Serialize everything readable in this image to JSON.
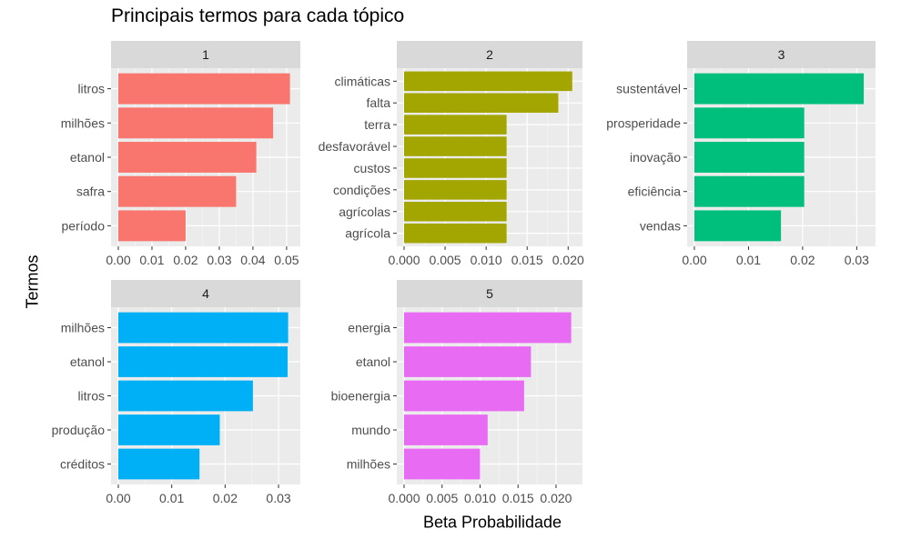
{
  "title": "Principais termos para cada tópico",
  "ylabel": "Termos",
  "xlabel": "Beta Probabilidade",
  "chart_data": [
    {
      "type": "bar",
      "orientation": "horizontal",
      "facet": "1",
      "color": "#F8766D",
      "categories": [
        "litros",
        "milhões",
        "etanol",
        "safra",
        "período"
      ],
      "values": [
        0.051,
        0.046,
        0.041,
        0.035,
        0.02
      ],
      "xlim": [
        0,
        0.053
      ],
      "ticks": [
        0.0,
        0.01,
        0.02,
        0.03,
        0.04,
        0.05
      ],
      "tick_labels": [
        "0.00",
        "0.01",
        "0.02",
        "0.03",
        "0.04",
        "0.05"
      ],
      "grid": true
    },
    {
      "type": "bar",
      "orientation": "horizontal",
      "facet": "2",
      "color": "#A3A500",
      "categories": [
        "climáticas",
        "falta",
        "terra",
        "desfavorável",
        "custos",
        "condições",
        "agrícolas",
        "agrícola"
      ],
      "values": [
        0.0205,
        0.0188,
        0.0125,
        0.0125,
        0.0125,
        0.0125,
        0.0125,
        0.0125
      ],
      "xlim": [
        0,
        0.0213
      ],
      "ticks": [
        0.0,
        0.005,
        0.01,
        0.015,
        0.02
      ],
      "tick_labels": [
        "0.000",
        "0.005",
        "0.010",
        "0.015",
        "0.020"
      ],
      "grid": true
    },
    {
      "type": "bar",
      "orientation": "horizontal",
      "facet": "3",
      "color": "#00BF7D",
      "categories": [
        "sustentável",
        "prosperidade",
        "inovação",
        "eficiência",
        "vendas"
      ],
      "values": [
        0.0313,
        0.0203,
        0.0203,
        0.0203,
        0.016
      ],
      "xlim": [
        0,
        0.0328
      ],
      "ticks": [
        0.0,
        0.01,
        0.02,
        0.03
      ],
      "tick_labels": [
        "0.00",
        "0.01",
        "0.02",
        "0.03"
      ],
      "grid": true
    },
    {
      "type": "bar",
      "orientation": "horizontal",
      "facet": "4",
      "color": "#00B0F6",
      "categories": [
        "milhões",
        "etanol",
        "litros",
        "produção",
        "créditos"
      ],
      "values": [
        0.0318,
        0.0317,
        0.0252,
        0.019,
        0.0152
      ],
      "xlim": [
        0,
        0.0334
      ],
      "ticks": [
        0.0,
        0.01,
        0.02,
        0.03
      ],
      "tick_labels": [
        "0.00",
        "0.01",
        "0.02",
        "0.03"
      ],
      "grid": true
    },
    {
      "type": "bar",
      "orientation": "horizontal",
      "facet": "5",
      "color": "#E76BF3",
      "categories": [
        "energia",
        "etanol",
        "bioenergia",
        "mundo",
        "milhões"
      ],
      "values": [
        0.022,
        0.0167,
        0.0158,
        0.011,
        0.01
      ],
      "xlim": [
        0,
        0.023
      ],
      "ticks": [
        0.0,
        0.005,
        0.01,
        0.015,
        0.02
      ],
      "tick_labels": [
        "0.000",
        "0.005",
        "0.010",
        "0.015",
        "0.020"
      ],
      "grid": true
    }
  ]
}
